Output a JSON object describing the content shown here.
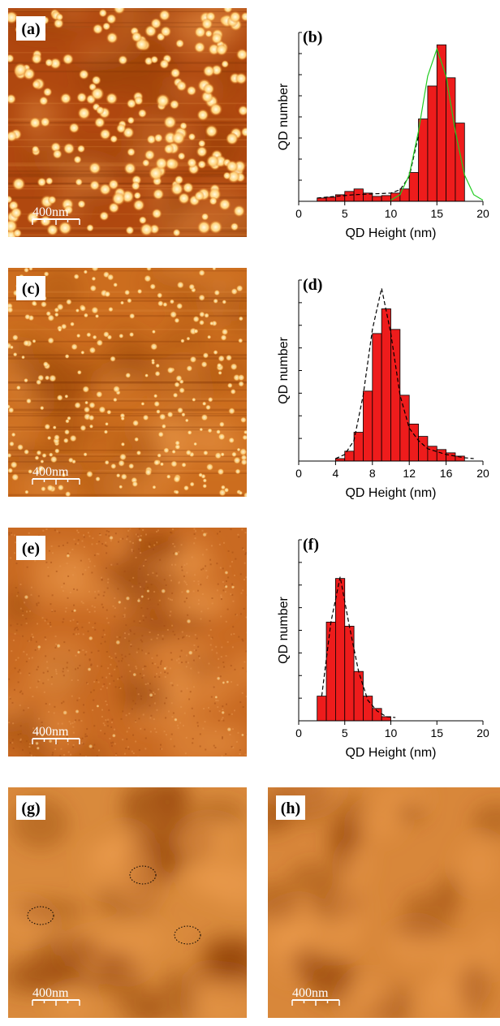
{
  "chart_data": [
    {
      "type": "histogram",
      "label": "(b)",
      "xlabel": "QD Height (nm)",
      "ylabel": "QD number",
      "color": "#ee1c1c",
      "bins": [
        2,
        3,
        4,
        5,
        6,
        7,
        8,
        9,
        10,
        11,
        12,
        13,
        14,
        15,
        16,
        17,
        18
      ],
      "values": [
        4,
        5,
        8,
        12,
        15,
        10,
        6,
        7,
        10,
        15,
        35,
        100,
        140,
        190,
        150,
        95
      ],
      "xlim": [
        0,
        20
      ],
      "xticks": [
        0,
        5,
        10,
        15,
        20
      ],
      "ylim": [
        0,
        205
      ],
      "fits": [
        {
          "color": "#000000",
          "dash": true,
          "x": [
            2,
            4,
            6,
            8,
            10,
            11,
            12,
            13
          ],
          "values": [
            4,
            6,
            8,
            9,
            10,
            14,
            30,
            80
          ]
        },
        {
          "color": "#22cc22",
          "dash": false,
          "x": [
            10,
            11,
            12,
            13,
            14,
            15,
            16,
            17,
            18,
            19,
            20
          ],
          "values": [
            1.4,
            8,
            32,
            85,
            152,
            185,
            152,
            85,
            32,
            8,
            1.4
          ]
        }
      ]
    },
    {
      "type": "histogram",
      "label": "(d)",
      "xlabel": "QD Height (nm)",
      "ylabel": "QD number",
      "color": "#ee1c1c",
      "bins": [
        4,
        5,
        6,
        7,
        8,
        9,
        10,
        11,
        12,
        13,
        14,
        15,
        16,
        17,
        18
      ],
      "values": [
        3,
        12,
        35,
        85,
        155,
        185,
        160,
        80,
        45,
        30,
        18,
        14,
        10,
        6
      ],
      "xlim": [
        0,
        20
      ],
      "xticks": [
        0,
        4,
        8,
        12,
        16,
        20
      ],
      "ylim": [
        0,
        220
      ],
      "fits": [
        {
          "color": "#000000",
          "dash": true,
          "x": [
            4,
            5,
            6,
            7,
            8,
            9,
            10,
            11,
            12,
            13,
            14,
            16,
            18,
            19
          ],
          "values": [
            3,
            8,
            25,
            80,
            160,
            210,
            155,
            80,
            40,
            25,
            15,
            8,
            4,
            3
          ]
        }
      ]
    },
    {
      "type": "histogram",
      "label": "(f)",
      "xlabel": "QD Height (nm)",
      "ylabel": "QD number",
      "color": "#ee1c1c",
      "bins": [
        2,
        3,
        4,
        5,
        6,
        7,
        8,
        9,
        10
      ],
      "values": [
        30,
        120,
        173,
        115,
        60,
        30,
        15,
        5
      ],
      "xlim": [
        0,
        20
      ],
      "xticks": [
        0,
        5,
        10,
        15,
        20
      ],
      "ylim": [
        0,
        220
      ],
      "fits": [
        {
          "color": "#000000",
          "dash": true,
          "x": [
            2.5,
            3.5,
            4.5,
            5.5,
            6.5,
            7.5,
            8.5,
            9.5,
            10.5
          ],
          "values": [
            30,
            120,
            175,
            115,
            60,
            25,
            12,
            5,
            4
          ]
        }
      ]
    }
  ],
  "images": [
    {
      "label": "(a)",
      "scale": "400nm"
    },
    {
      "label": "(c)",
      "scale": "400nm"
    },
    {
      "label": "(e)",
      "scale": "400nm"
    },
    {
      "label": "(g)",
      "scale": "400nm"
    },
    {
      "label": "(h)",
      "scale": "400nm"
    }
  ]
}
